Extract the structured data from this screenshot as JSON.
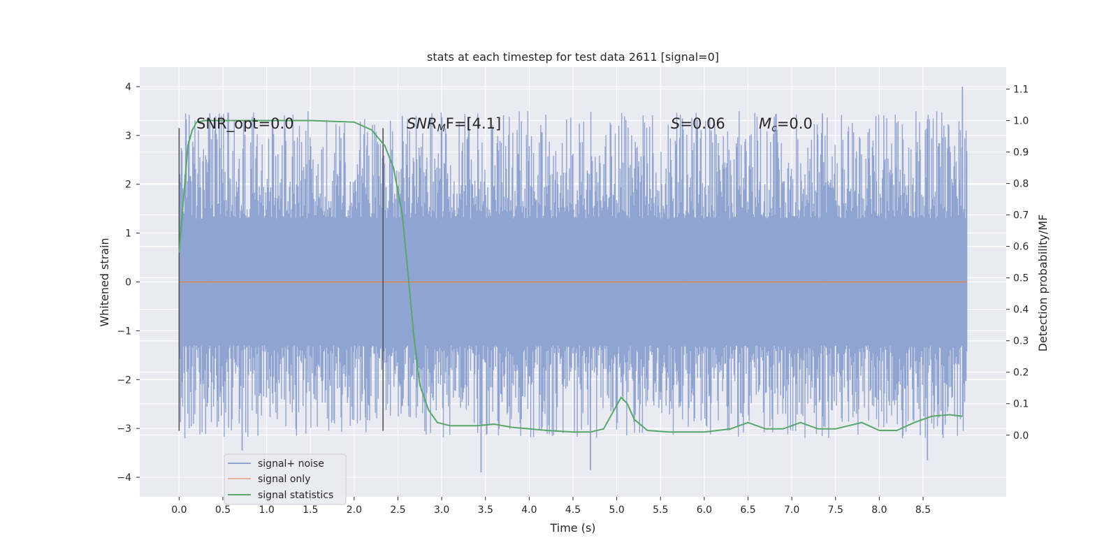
{
  "chart_data": {
    "type": "line",
    "title": "stats at each timestep for test data 2611 [signal=0]",
    "xlabel": "Time (s)",
    "ylabel": "Whitened strain",
    "y2label": "Detection probability/MF",
    "xlim": [
      -0.45,
      9.45
    ],
    "ylim": [
      -4.4,
      4.4
    ],
    "y2lim": [
      -0.196,
      1.17
    ],
    "xticks": [
      "0.0",
      "0.5",
      "1.0",
      "1.5",
      "2.0",
      "2.5",
      "3.0",
      "3.5",
      "4.0",
      "4.5",
      "5.0",
      "5.5",
      "6.0",
      "6.5",
      "7.0",
      "7.5",
      "8.0",
      "8.5"
    ],
    "yticks": [
      "4",
      "3",
      "2",
      "1",
      "0",
      "−1",
      "−2",
      "−3",
      "−4"
    ],
    "y2ticks": [
      "1.1",
      "1.0",
      "0.9",
      "0.8",
      "0.7",
      "0.6",
      "0.5",
      "0.4",
      "0.3",
      "0.2",
      "0.1",
      "0.0"
    ],
    "grid": true,
    "legend_position": "lower-left",
    "annotations": {
      "snr_opt": "SNR_opt=0.0",
      "snr_mf_base": "SNR",
      "snr_mf_sub": "M",
      "snr_mf_rest": "F=[4.1]",
      "s_base": "S",
      "s_rest": "=0.06",
      "mc_base": "M",
      "mc_sub": "c",
      "mc_rest": "=0.0"
    },
    "markers": [
      {
        "x": 0.0,
        "y_range": [
          -3.05,
          3.15
        ]
      },
      {
        "x": 2.33,
        "y_range": [
          -3.05,
          3.15
        ]
      }
    ],
    "series": [
      {
        "name": "signal+ noise",
        "color": "#8fa4d0",
        "x_range": [
          0.0,
          9.0
        ],
        "band": [
          -1.3,
          1.3
        ],
        "envelope": [
          -3.2,
          3.5
        ],
        "max_peak": 4.0,
        "min_peak": -3.9
      },
      {
        "name": "signal only",
        "color": "#dd8452",
        "x": [
          0.0,
          9.0
        ],
        "y": [
          0.0,
          0.0
        ]
      },
      {
        "name": "signal statistics",
        "color": "#55a868",
        "axis": "right",
        "x": [
          0.0,
          0.05,
          0.1,
          0.15,
          0.2,
          0.3,
          0.5,
          1.0,
          1.5,
          2.0,
          2.2,
          2.35,
          2.45,
          2.55,
          2.62,
          2.68,
          2.75,
          2.85,
          2.95,
          3.1,
          3.4,
          3.6,
          3.8,
          4.2,
          4.5,
          4.7,
          4.85,
          4.95,
          5.05,
          5.12,
          5.2,
          5.35,
          5.6,
          6.0,
          6.3,
          6.5,
          6.7,
          6.9,
          7.1,
          7.3,
          7.5,
          7.8,
          8.0,
          8.2,
          8.4,
          8.6,
          8.8,
          8.95
        ],
        "y": [
          0.58,
          0.75,
          0.92,
          0.97,
          0.995,
          1.0,
          1.0,
          1.0,
          1.0,
          0.995,
          0.97,
          0.92,
          0.85,
          0.7,
          0.5,
          0.32,
          0.16,
          0.08,
          0.04,
          0.03,
          0.03,
          0.035,
          0.025,
          0.015,
          0.01,
          0.01,
          0.02,
          0.07,
          0.12,
          0.1,
          0.05,
          0.015,
          0.01,
          0.01,
          0.02,
          0.04,
          0.02,
          0.02,
          0.04,
          0.02,
          0.02,
          0.04,
          0.015,
          0.015,
          0.04,
          0.06,
          0.065,
          0.06
        ]
      }
    ]
  }
}
